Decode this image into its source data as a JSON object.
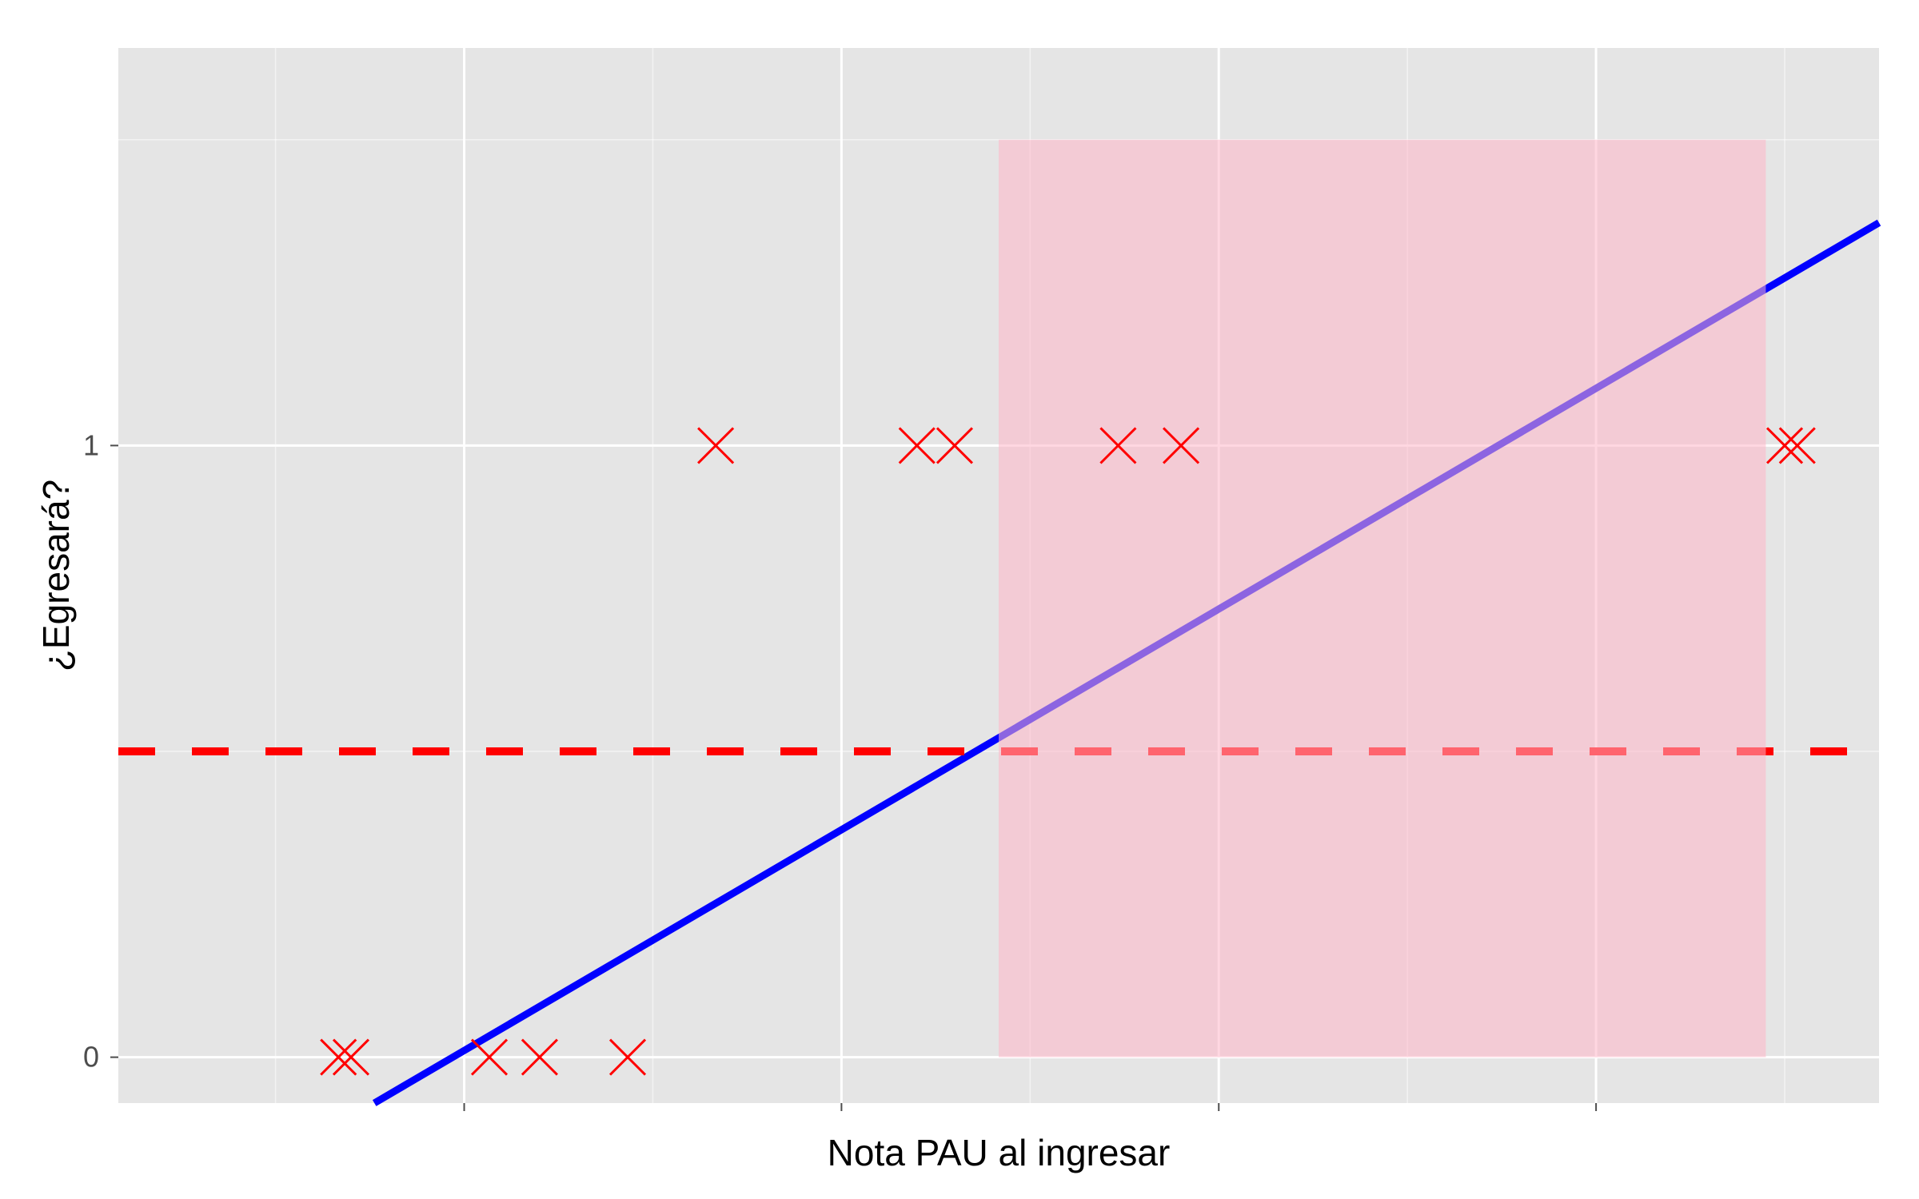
{
  "chart_data": {
    "type": "scatter",
    "title": "",
    "xlabel": "Nota PAU al ingresar",
    "ylabel": "¿Egresará?",
    "x_tick_labels": [],
    "y_ticks": [
      {
        "value": 0,
        "label": "0"
      },
      {
        "value": 1,
        "label": "1"
      }
    ],
    "xlim": [
      0.25,
      14.25
    ],
    "ylim": [
      -0.075,
      1.65
    ],
    "major_x_gridlines": [
      3,
      6,
      9,
      12
    ],
    "minor_x_gridlines": [
      1.5,
      4.5,
      7.5,
      10.5,
      13.5
    ],
    "major_y_gridlines": [
      0,
      1
    ],
    "minor_y_gridlines": [
      0.5,
      1.5
    ],
    "grid": true,
    "legend": "none",
    "points": [
      {
        "x": 2.0,
        "y": 0
      },
      {
        "x": 2.1,
        "y": 0
      },
      {
        "x": 3.2,
        "y": 0
      },
      {
        "x": 3.6,
        "y": 0
      },
      {
        "x": 4.3,
        "y": 0
      },
      {
        "x": 5.0,
        "y": 1
      },
      {
        "x": 6.6,
        "y": 1
      },
      {
        "x": 6.9,
        "y": 1
      },
      {
        "x": 8.2,
        "y": 1
      },
      {
        "x": 8.7,
        "y": 1
      },
      {
        "x": 13.5,
        "y": 1
      },
      {
        "x": 13.6,
        "y": 1
      }
    ],
    "regression_line": {
      "intercept": -0.35,
      "slope": 0.1203
    },
    "threshold_line": {
      "y": 0.5,
      "style": "dashed"
    },
    "shaded_region": {
      "x": [
        7.25,
        13.35
      ],
      "y": [
        0,
        1.5
      ]
    },
    "colors": {
      "panel_background": "#e5e5e5",
      "gridline": "#ffffff",
      "points": "#ff0000",
      "regression_line": "#0000ff",
      "threshold_line": "#ff0000",
      "shaded_region": "#ffb6c8"
    }
  }
}
